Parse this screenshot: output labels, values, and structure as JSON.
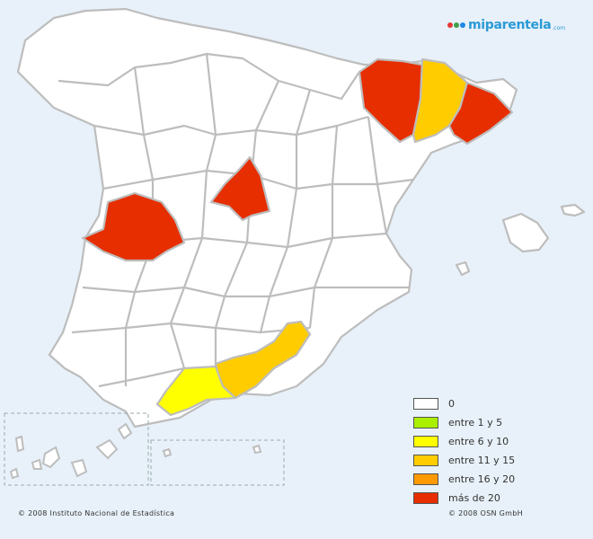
{
  "logo": {
    "text": "miparentela",
    "suffix": ".com",
    "dot_colors": [
      "#e53935",
      "#43a047",
      "#1e88e5"
    ]
  },
  "legend": [
    {
      "label": "0",
      "color": "#ffffff"
    },
    {
      "label": "entre 1 y 5",
      "color": "#aaee00"
    },
    {
      "label": "entre 6 y 10",
      "color": "#ffff00"
    },
    {
      "label": "entre 11 y 15",
      "color": "#ffcc00"
    },
    {
      "label": "entre 16 y 20",
      "color": "#ff9900"
    },
    {
      "label": "más de 20",
      "color": "#e62e00"
    }
  ],
  "colors": {
    "sea": "#e8f1f9",
    "land": "#ffffff",
    "border": "#bdbdbd"
  },
  "highlighted_provinces": [
    {
      "name": "huesca",
      "category": "más de 20"
    },
    {
      "name": "barcelona",
      "category": "más de 20"
    },
    {
      "name": "lleida",
      "category": "entre 11 y 15"
    },
    {
      "name": "madrid",
      "category": "más de 20"
    },
    {
      "name": "caceres",
      "category": "más de 20"
    },
    {
      "name": "granada",
      "category": "entre 11 y 15"
    },
    {
      "name": "malaga",
      "category": "entre 6 y 10"
    }
  ],
  "footer": {
    "left": "© 2008 Instituto Nacional de Estadística",
    "right": "© 2008 OSN GmbH"
  }
}
